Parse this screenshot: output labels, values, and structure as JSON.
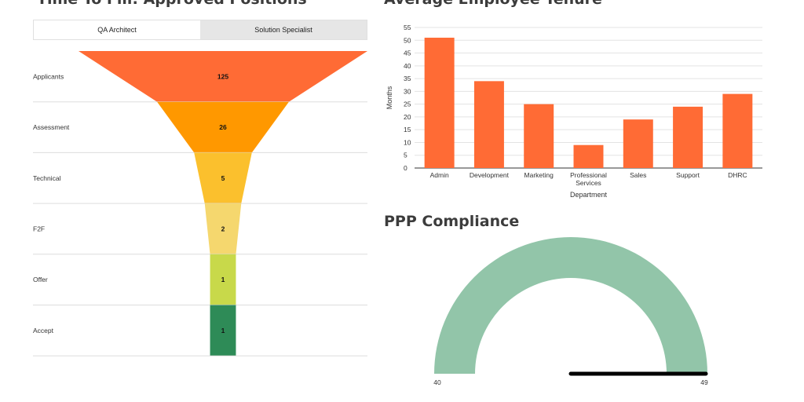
{
  "time_to_fill": {
    "title": "Time To Fill: Approved Positions",
    "tabs": [
      {
        "label": "QA Architect",
        "active": true
      },
      {
        "label": "Solution Specialist",
        "active": false
      }
    ]
  },
  "tenure": {
    "title": "Average Employee Tenure"
  },
  "ppp": {
    "title": "PPP Compliance"
  },
  "chart_data": [
    {
      "type": "funnel",
      "stages": [
        "Applicants",
        "Assessment",
        "Technical",
        "F2F",
        "Offer",
        "Accept"
      ],
      "values": [
        125,
        26,
        5,
        2,
        1,
        1
      ],
      "value_labels": [
        "125",
        "26",
        "5",
        "2",
        "1",
        "1"
      ],
      "colors": [
        "#ff6b35",
        "#ff9800",
        "#fbc02d",
        "#f5d76e",
        "#c8d94a",
        "#2e8b57"
      ]
    },
    {
      "type": "bar",
      "categories": [
        "Admin",
        "Development",
        "Marketing",
        "Professional Services",
        "Sales",
        "Support",
        "DHRC"
      ],
      "category_labels": [
        [
          "Admin"
        ],
        [
          "Development"
        ],
        [
          "Marketing"
        ],
        [
          "Professional",
          "Services"
        ],
        [
          "Sales"
        ],
        [
          "Support"
        ],
        [
          "DHRC"
        ]
      ],
      "values": [
        51,
        34,
        25,
        9,
        19,
        24,
        29
      ],
      "xlabel": "Department",
      "ylabel": "Months",
      "ylim": [
        0,
        55
      ],
      "yticks": [
        0,
        5,
        10,
        15,
        20,
        25,
        30,
        35,
        40,
        45,
        50,
        55
      ],
      "grid": true,
      "color": "#ff6b35"
    },
    {
      "type": "gauge",
      "min": 40,
      "max": 49,
      "min_label": "40",
      "max_label": "49",
      "value": 49,
      "color": "#92c5a9",
      "needle_color": "#000000"
    }
  ]
}
